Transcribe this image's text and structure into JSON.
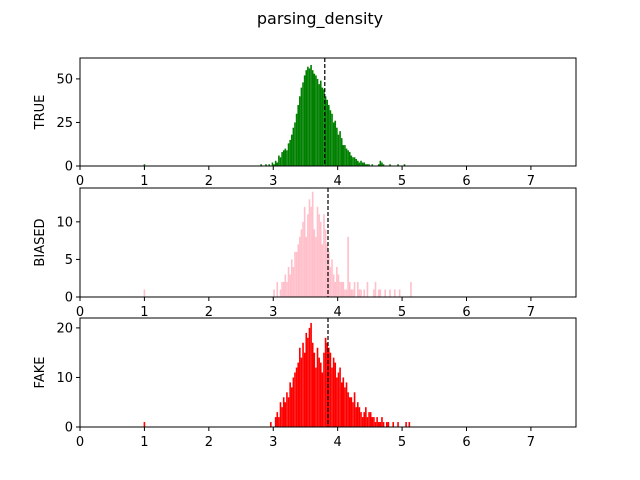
{
  "chart_data": {
    "title": "parsing_density",
    "xlim": [
      0,
      7.7
    ],
    "xticks": [
      0,
      1,
      2,
      3,
      4,
      5,
      6,
      7
    ],
    "bin_width": 0.025,
    "panels": [
      {
        "ylabel": "TRUE",
        "type": "bar",
        "color": "#008000",
        "ylim": [
          0,
          62
        ],
        "yticks": [
          0,
          25,
          50
        ],
        "mean": 3.8,
        "bins_start": 1.0,
        "isolated": [
          [
            1.0,
            1
          ]
        ],
        "main_start": 2.8,
        "values": [
          1,
          0,
          0,
          1,
          0,
          1,
          0,
          2,
          1,
          3,
          2,
          6,
          5,
          8,
          9,
          10,
          9,
          13,
          15,
          18,
          22,
          25,
          30,
          35,
          40,
          45,
          48,
          52,
          55,
          57,
          56,
          58,
          55,
          53,
          52,
          50,
          47,
          49,
          45,
          44,
          40,
          38,
          35,
          32,
          30,
          25,
          26,
          22,
          18,
          20,
          16,
          12,
          12,
          10,
          9,
          8,
          6,
          5,
          5,
          4,
          3,
          2,
          3,
          2,
          2,
          1,
          1,
          1,
          0,
          1,
          0,
          0,
          0,
          1,
          3,
          2,
          1,
          0,
          0,
          0,
          1,
          0,
          0,
          0,
          0,
          1,
          0,
          0,
          0,
          1
        ]
      },
      {
        "ylabel": "BIASED",
        "type": "bar",
        "color": "#ffc0cb",
        "ylim": [
          0,
          14.5
        ],
        "yticks": [
          0,
          5,
          10
        ],
        "mean": 3.85,
        "isolated": [
          [
            1.0,
            1
          ]
        ],
        "main_start": 3.0,
        "values": [
          1,
          0,
          2,
          0,
          1,
          2,
          2,
          3,
          2,
          4,
          3,
          5,
          4,
          6,
          6,
          7,
          8,
          9,
          10,
          12,
          8,
          11,
          13,
          12,
          14,
          9,
          8,
          12,
          11,
          10,
          7,
          11,
          9,
          7,
          6,
          4,
          5,
          3,
          2,
          4,
          3,
          2,
          2,
          2,
          1,
          1,
          8,
          2,
          1,
          1,
          2,
          0,
          2,
          1,
          1,
          0,
          1,
          0,
          2,
          0,
          0,
          0,
          1,
          2,
          0,
          1,
          1,
          0,
          0,
          1,
          0,
          0,
          1,
          0,
          0,
          1,
          0,
          0,
          1,
          0,
          0,
          0,
          0,
          0,
          0,
          2
        ]
      },
      {
        "ylabel": "FAKE",
        "type": "bar",
        "color": "#ff0000",
        "ylim": [
          0,
          22
        ],
        "yticks": [
          0,
          10,
          20
        ],
        "mean": 3.85,
        "isolated": [
          [
            1.0,
            1
          ]
        ],
        "main_start": 2.95,
        "values": [
          1,
          0,
          0,
          2,
          3,
          2,
          5,
          4,
          6,
          5,
          7,
          6,
          9,
          8,
          10,
          11,
          12,
          13,
          16,
          14,
          17,
          15,
          19,
          18,
          20,
          21,
          17,
          15,
          12,
          16,
          14,
          13,
          11,
          15,
          18,
          17,
          16,
          15,
          12,
          14,
          13,
          10,
          11,
          12,
          9,
          10,
          8,
          9,
          7,
          6,
          6,
          5,
          7,
          4,
          5,
          4,
          3,
          2,
          3,
          4,
          2,
          3,
          3,
          2,
          2,
          1,
          2,
          1,
          1,
          2,
          1,
          0,
          1,
          1,
          0,
          0,
          1,
          0,
          0,
          1,
          0,
          0,
          0,
          0,
          1,
          0,
          1
        ]
      }
    ]
  }
}
